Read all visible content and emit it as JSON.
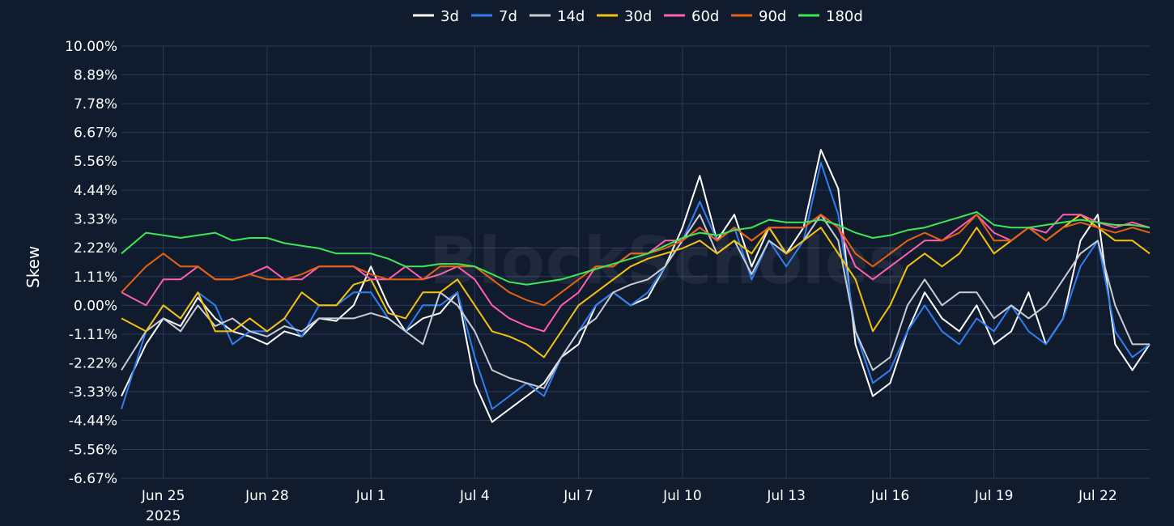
{
  "chart_data": {
    "type": "line",
    "title": "",
    "xlabel": "",
    "ylabel": "Skew",
    "watermark": "BlockScholes",
    "grid": true,
    "legend_position": "top-center",
    "ylim": [
      -6.67,
      10.0
    ],
    "y_ticks": [
      "10.00%",
      "8.89%",
      "7.78%",
      "6.67%",
      "5.56%",
      "4.44%",
      "3.33%",
      "2.22%",
      "1.11%",
      "0.00%",
      "-1.11%",
      "-2.22%",
      "-3.33%",
      "-4.44%",
      "-5.56%",
      "-6.67%"
    ],
    "x_ticks": [
      "Jun 25",
      "Jun 28",
      "Jul 1",
      "Jul 4",
      "Jul 7",
      "Jul 10",
      "Jul 13",
      "Jul 16",
      "Jul 19",
      "Jul 22"
    ],
    "x_tick_sublabel": "2025",
    "x_range": [
      "2025-06-23T19:00",
      "2025-07-23T12:00"
    ],
    "x": [
      "2025-06-23T19:00",
      "2025-06-24T12:00",
      "2025-06-25T00:00",
      "2025-06-25T12:00",
      "2025-06-26T00:00",
      "2025-06-26T12:00",
      "2025-06-27T00:00",
      "2025-06-27T12:00",
      "2025-06-28T00:00",
      "2025-06-28T12:00",
      "2025-06-29T00:00",
      "2025-06-29T12:00",
      "2025-06-30T00:00",
      "2025-06-30T12:00",
      "2025-07-01T00:00",
      "2025-07-01T12:00",
      "2025-07-02T00:00",
      "2025-07-02T12:00",
      "2025-07-03T00:00",
      "2025-07-03T12:00",
      "2025-07-04T00:00",
      "2025-07-04T12:00",
      "2025-07-05T00:00",
      "2025-07-05T12:00",
      "2025-07-06T00:00",
      "2025-07-06T12:00",
      "2025-07-07T00:00",
      "2025-07-07T12:00",
      "2025-07-08T00:00",
      "2025-07-08T12:00",
      "2025-07-09T00:00",
      "2025-07-09T12:00",
      "2025-07-10T00:00",
      "2025-07-10T12:00",
      "2025-07-11T00:00",
      "2025-07-11T12:00",
      "2025-07-12T00:00",
      "2025-07-12T12:00",
      "2025-07-13T00:00",
      "2025-07-13T12:00",
      "2025-07-14T00:00",
      "2025-07-14T12:00",
      "2025-07-15T00:00",
      "2025-07-15T12:00",
      "2025-07-16T00:00",
      "2025-07-16T12:00",
      "2025-07-17T00:00",
      "2025-07-17T12:00",
      "2025-07-18T00:00",
      "2025-07-18T12:00",
      "2025-07-19T00:00",
      "2025-07-19T12:00",
      "2025-07-20T00:00",
      "2025-07-20T12:00",
      "2025-07-21T00:00",
      "2025-07-21T12:00",
      "2025-07-22T00:00",
      "2025-07-22T12:00",
      "2025-07-23T00:00",
      "2025-07-23T12:00"
    ],
    "series": [
      {
        "name": "3d",
        "color": "#ffffff",
        "values": [
          -3.5,
          -1.5,
          -0.5,
          -0.8,
          0.3,
          -0.5,
          -1.0,
          -1.2,
          -1.5,
          -1.0,
          -1.2,
          -0.5,
          -0.6,
          0.0,
          1.5,
          0.0,
          -1.0,
          -0.5,
          -0.3,
          0.5,
          -3.0,
          -4.5,
          -4.0,
          -3.5,
          -3.0,
          -2.0,
          -1.5,
          0.0,
          0.5,
          0.0,
          0.3,
          1.5,
          3.0,
          5.0,
          2.5,
          3.5,
          1.5,
          3.0,
          2.0,
          3.0,
          6.0,
          4.5,
          -1.5,
          -3.5,
          -3.0,
          -1.0,
          0.5,
          -0.5,
          -1.0,
          0.0,
          -1.5,
          -1.0,
          0.5,
          -1.5,
          -0.5,
          2.5,
          3.5,
          -1.5,
          -2.5,
          -1.5
        ]
      },
      {
        "name": "7d",
        "color": "#2f7ff2",
        "values": [
          -4.0,
          -1.0,
          0.0,
          -0.5,
          0.5,
          0.0,
          -1.5,
          -1.0,
          -1.0,
          -0.5,
          -1.2,
          0.0,
          0.0,
          0.5,
          0.5,
          -0.5,
          -1.0,
          0.0,
          0.0,
          0.5,
          -2.0,
          -4.0,
          -3.5,
          -3.0,
          -3.5,
          -2.0,
          -1.0,
          0.0,
          0.5,
          0.0,
          0.5,
          1.5,
          2.5,
          4.0,
          2.5,
          3.0,
          1.0,
          2.5,
          1.5,
          2.5,
          5.5,
          3.5,
          -1.0,
          -3.0,
          -2.5,
          -1.0,
          0.0,
          -1.0,
          -1.5,
          -0.5,
          -1.0,
          0.0,
          -1.0,
          -1.5,
          -0.5,
          1.5,
          2.5,
          -1.0,
          -2.0,
          -1.5
        ]
      },
      {
        "name": "14d",
        "color": "#c8ccd4",
        "values": [
          -2.5,
          -1.0,
          -0.5,
          -1.0,
          0.0,
          -0.8,
          -0.5,
          -1.0,
          -1.2,
          -0.8,
          -1.0,
          -0.5,
          -0.5,
          -0.5,
          -0.3,
          -0.5,
          -1.0,
          -1.5,
          0.5,
          0.0,
          -1.0,
          -2.5,
          -2.8,
          -3.0,
          -3.2,
          -2.0,
          -1.0,
          -0.5,
          0.5,
          0.8,
          1.0,
          1.5,
          2.5,
          3.5,
          2.0,
          2.5,
          1.2,
          2.5,
          2.0,
          2.5,
          3.5,
          2.5,
          -1.0,
          -2.5,
          -2.0,
          0.0,
          1.0,
          0.0,
          0.5,
          0.5,
          -0.5,
          0.0,
          -0.5,
          0.0,
          1.0,
          2.0,
          2.5,
          0.0,
          -1.5,
          -1.5
        ]
      },
      {
        "name": "30d",
        "color": "#f4c20d",
        "values": [
          -0.5,
          -1.0,
          0.0,
          -0.5,
          0.5,
          -1.0,
          -1.0,
          -0.5,
          -1.0,
          -0.5,
          0.5,
          0.0,
          0.0,
          0.8,
          1.0,
          -0.3,
          -0.5,
          0.5,
          0.5,
          1.0,
          0.0,
          -1.0,
          -1.2,
          -1.5,
          -2.0,
          -1.0,
          0.0,
          0.5,
          1.0,
          1.5,
          1.8,
          2.0,
          2.2,
          2.5,
          2.0,
          2.5,
          2.0,
          3.0,
          2.0,
          2.5,
          3.0,
          2.0,
          1.0,
          -1.0,
          0.0,
          1.5,
          2.0,
          1.5,
          2.0,
          3.0,
          2.0,
          2.5,
          3.0,
          2.5,
          3.0,
          3.5,
          3.0,
          2.5,
          2.5,
          2.0
        ]
      },
      {
        "name": "60d",
        "color": "#ff5fae",
        "values": [
          0.5,
          0.0,
          1.0,
          1.0,
          1.5,
          1.0,
          1.0,
          1.2,
          1.5,
          1.0,
          1.0,
          1.5,
          1.5,
          1.5,
          1.0,
          1.0,
          1.5,
          1.0,
          1.2,
          1.5,
          1.0,
          0.0,
          -0.5,
          -0.8,
          -1.0,
          0.0,
          0.5,
          1.5,
          1.5,
          2.0,
          2.0,
          2.5,
          2.5,
          3.0,
          2.5,
          3.0,
          2.5,
          3.0,
          3.0,
          3.0,
          3.5,
          3.0,
          1.5,
          1.0,
          1.5,
          2.0,
          2.5,
          2.5,
          3.0,
          3.5,
          2.8,
          2.5,
          3.0,
          2.8,
          3.5,
          3.5,
          3.2,
          3.0,
          3.2,
          3.0
        ]
      },
      {
        "name": "90d",
        "color": "#e8620f",
        "values": [
          0.5,
          1.5,
          2.0,
          1.5,
          1.5,
          1.0,
          1.0,
          1.2,
          1.0,
          1.0,
          1.2,
          1.5,
          1.5,
          1.5,
          1.2,
          1.0,
          1.0,
          1.0,
          1.5,
          1.5,
          1.5,
          1.0,
          0.5,
          0.2,
          0.0,
          0.5,
          1.0,
          1.5,
          1.5,
          2.0,
          2.0,
          2.2,
          2.5,
          3.0,
          2.5,
          3.0,
          2.5,
          3.0,
          3.0,
          3.0,
          3.5,
          3.0,
          2.0,
          1.5,
          2.0,
          2.5,
          2.8,
          2.5,
          2.8,
          3.5,
          2.5,
          2.5,
          3.0,
          2.5,
          3.0,
          3.2,
          3.0,
          2.8,
          3.0,
          2.8
        ]
      },
      {
        "name": "180d",
        "color": "#3ee855",
        "values": [
          2.0,
          2.8,
          2.7,
          2.6,
          2.7,
          2.8,
          2.5,
          2.6,
          2.6,
          2.4,
          2.3,
          2.2,
          2.0,
          2.0,
          2.0,
          1.8,
          1.5,
          1.5,
          1.6,
          1.6,
          1.5,
          1.2,
          0.9,
          0.8,
          0.9,
          1.0,
          1.2,
          1.4,
          1.6,
          1.8,
          2.0,
          2.3,
          2.6,
          2.8,
          2.7,
          2.9,
          3.0,
          3.3,
          3.2,
          3.2,
          3.3,
          3.1,
          2.8,
          2.6,
          2.7,
          2.9,
          3.0,
          3.2,
          3.4,
          3.6,
          3.1,
          3.0,
          3.0,
          3.1,
          3.2,
          3.3,
          3.2,
          3.1,
          3.1,
          3.0
        ]
      }
    ]
  }
}
